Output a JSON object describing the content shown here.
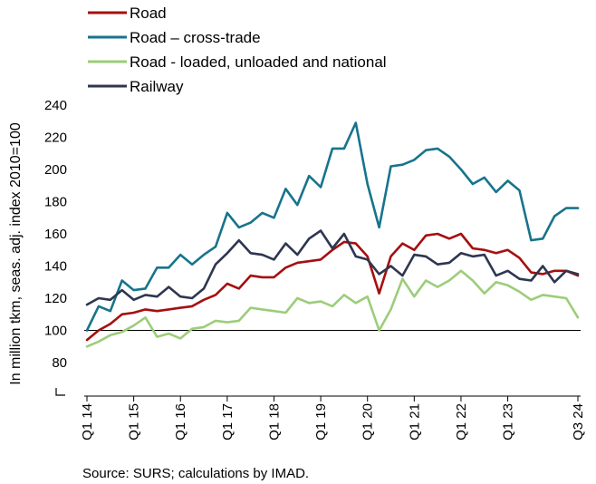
{
  "chart_data": {
    "type": "line",
    "ylabel": "In million tkm, seas. adj. index 2010=100",
    "ylim": [
      80,
      240
    ],
    "y_ticks": [
      80,
      100,
      120,
      140,
      160,
      180,
      200,
      220,
      240
    ],
    "x_tick_labels": [
      "Q1 14",
      "Q1 15",
      "Q1 16",
      "Q1 17",
      "Q1 18",
      "Q1 19",
      "Q1 20",
      "Q1 21",
      "Q1 22",
      "Q1 23",
      "Q3 24"
    ],
    "x_tick_quarter_index": [
      0,
      4,
      8,
      12,
      16,
      20,
      24,
      28,
      32,
      36,
      42
    ],
    "reference_line": 100,
    "grid": false,
    "legend_position": "top-left",
    "source": "Source: SURS; calculations by IMAD.",
    "series": [
      {
        "name": "Road",
        "color": "#a50f0f",
        "values": [
          94,
          100,
          104,
          110,
          111,
          113,
          112,
          113,
          114,
          115,
          119,
          122,
          129,
          126,
          134,
          133,
          133,
          139,
          142,
          143,
          144,
          150,
          155,
          154,
          146,
          123,
          146,
          154,
          150,
          159,
          160,
          157,
          160,
          151,
          150,
          148,
          150,
          145,
          136,
          135,
          137,
          137,
          134
        ]
      },
      {
        "name": "Road – cross-trade",
        "color": "#17748c",
        "values": [
          100,
          115,
          112,
          131,
          125,
          126,
          139,
          139,
          147,
          141,
          147,
          152,
          173,
          164,
          167,
          173,
          170,
          188,
          178,
          196,
          189,
          213,
          213,
          229,
          191,
          164,
          202,
          203,
          206,
          212,
          213,
          208,
          200,
          191,
          195,
          186,
          193,
          187,
          156,
          157,
          171,
          176,
          176
        ]
      },
      {
        "name": "Road - loaded, unloaded and national",
        "color": "#9ccd7a",
        "values": [
          90,
          93,
          97,
          99,
          103,
          108,
          96,
          98,
          95,
          101,
          102,
          106,
          105,
          106,
          114,
          113,
          112,
          111,
          120,
          117,
          118,
          115,
          122,
          117,
          121,
          100,
          113,
          132,
          121,
          131,
          127,
          131,
          137,
          131,
          123,
          130,
          128,
          124,
          119,
          122,
          121,
          120,
          108
        ]
      },
      {
        "name": "Railway",
        "color": "#2e3650",
        "values": [
          116,
          120,
          119,
          125,
          119,
          122,
          121,
          127,
          121,
          120,
          126,
          141,
          148,
          156,
          148,
          147,
          144,
          154,
          147,
          157,
          162,
          151,
          160,
          146,
          144,
          135,
          140,
          134,
          147,
          146,
          141,
          142,
          148,
          146,
          147,
          134,
          137,
          132,
          131,
          140,
          130,
          137,
          135
        ]
      }
    ]
  }
}
